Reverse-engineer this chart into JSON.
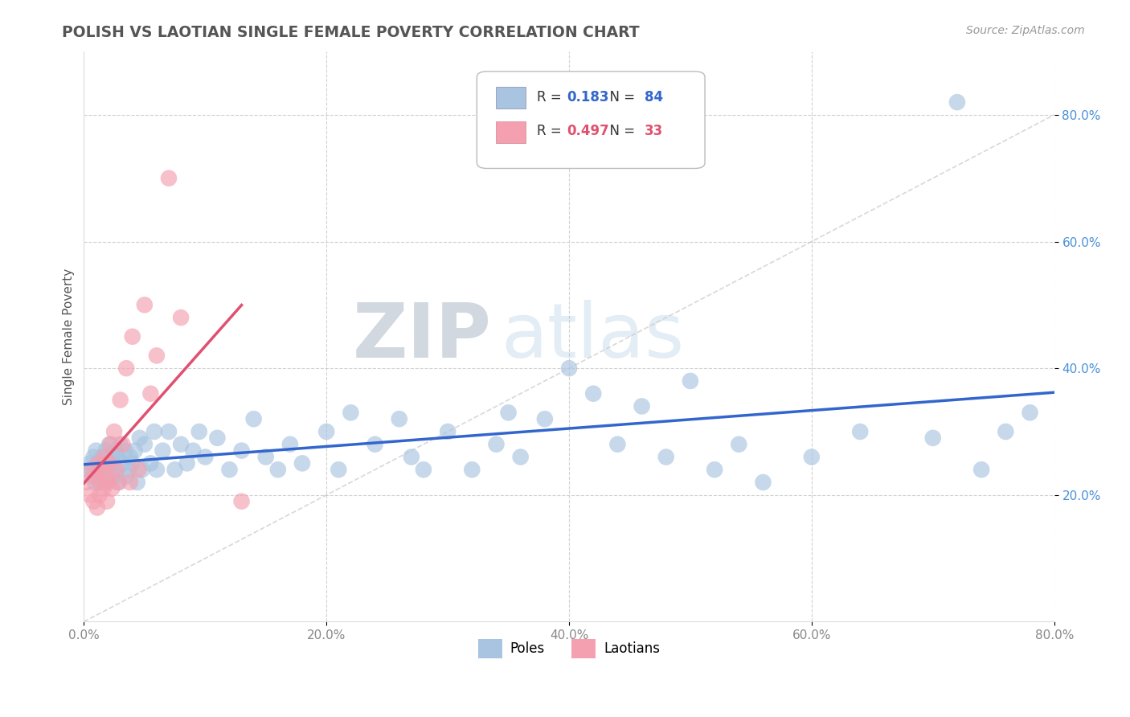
{
  "title": "POLISH VS LAOTIAN SINGLE FEMALE POVERTY CORRELATION CHART",
  "source": "Source: ZipAtlas.com",
  "ylabel": "Single Female Poverty",
  "xlim": [
    0.0,
    0.8
  ],
  "ylim": [
    0.0,
    0.9
  ],
  "xticks": [
    0.0,
    0.2,
    0.4,
    0.6,
    0.8
  ],
  "yticks": [
    0.2,
    0.4,
    0.6,
    0.8
  ],
  "xticklabels": [
    "0.0%",
    "20.0%",
    "40.0%",
    "60.0%",
    "80.0%"
  ],
  "yticklabels": [
    "20.0%",
    "40.0%",
    "60.0%",
    "80.0%"
  ],
  "poles_color": "#a8c4e0",
  "laotians_color": "#f4a0b0",
  "poles_line_color": "#3366cc",
  "laotians_line_color": "#e05070",
  "poles_R": 0.183,
  "poles_N": 84,
  "laotians_R": 0.497,
  "laotians_N": 33,
  "watermark_zip": "ZIP",
  "watermark_atlas": "atlas",
  "background_color": "#ffffff",
  "grid_color": "#cccccc",
  "title_color": "#555555",
  "poles_x": [
    0.003,
    0.005,
    0.007,
    0.008,
    0.009,
    0.01,
    0.011,
    0.012,
    0.013,
    0.015,
    0.016,
    0.017,
    0.018,
    0.019,
    0.02,
    0.021,
    0.022,
    0.023,
    0.024,
    0.025,
    0.026,
    0.027,
    0.028,
    0.029,
    0.03,
    0.032,
    0.034,
    0.035,
    0.037,
    0.038,
    0.04,
    0.042,
    0.044,
    0.046,
    0.048,
    0.05,
    0.055,
    0.058,
    0.06,
    0.065,
    0.07,
    0.075,
    0.08,
    0.085,
    0.09,
    0.095,
    0.1,
    0.11,
    0.12,
    0.13,
    0.14,
    0.15,
    0.16,
    0.17,
    0.18,
    0.2,
    0.21,
    0.22,
    0.24,
    0.26,
    0.27,
    0.28,
    0.3,
    0.32,
    0.34,
    0.35,
    0.36,
    0.38,
    0.4,
    0.42,
    0.44,
    0.46,
    0.48,
    0.5,
    0.52,
    0.54,
    0.56,
    0.6,
    0.64,
    0.7,
    0.72,
    0.74,
    0.76,
    0.78
  ],
  "poles_y": [
    0.24,
    0.25,
    0.23,
    0.26,
    0.22,
    0.27,
    0.25,
    0.24,
    0.22,
    0.26,
    0.24,
    0.25,
    0.27,
    0.22,
    0.25,
    0.28,
    0.23,
    0.26,
    0.24,
    0.25,
    0.27,
    0.23,
    0.26,
    0.22,
    0.28,
    0.25,
    0.27,
    0.23,
    0.24,
    0.26,
    0.25,
    0.27,
    0.22,
    0.29,
    0.24,
    0.28,
    0.25,
    0.3,
    0.24,
    0.27,
    0.3,
    0.24,
    0.28,
    0.25,
    0.27,
    0.3,
    0.26,
    0.29,
    0.24,
    0.27,
    0.32,
    0.26,
    0.24,
    0.28,
    0.25,
    0.3,
    0.24,
    0.33,
    0.28,
    0.32,
    0.26,
    0.24,
    0.3,
    0.24,
    0.28,
    0.33,
    0.26,
    0.32,
    0.4,
    0.36,
    0.28,
    0.34,
    0.26,
    0.38,
    0.24,
    0.28,
    0.22,
    0.26,
    0.3,
    0.29,
    0.82,
    0.24,
    0.3,
    0.33
  ],
  "laotians_x": [
    0.003,
    0.005,
    0.007,
    0.008,
    0.01,
    0.011,
    0.012,
    0.013,
    0.014,
    0.015,
    0.016,
    0.017,
    0.018,
    0.019,
    0.02,
    0.021,
    0.022,
    0.023,
    0.025,
    0.027,
    0.028,
    0.03,
    0.032,
    0.035,
    0.038,
    0.04,
    0.045,
    0.05,
    0.055,
    0.06,
    0.07,
    0.08,
    0.13
  ],
  "laotians_y": [
    0.22,
    0.2,
    0.24,
    0.19,
    0.23,
    0.18,
    0.25,
    0.2,
    0.22,
    0.24,
    0.21,
    0.26,
    0.23,
    0.19,
    0.22,
    0.25,
    0.28,
    0.21,
    0.3,
    0.24,
    0.22,
    0.35,
    0.28,
    0.4,
    0.22,
    0.45,
    0.24,
    0.5,
    0.36,
    0.42,
    0.7,
    0.48,
    0.19
  ]
}
